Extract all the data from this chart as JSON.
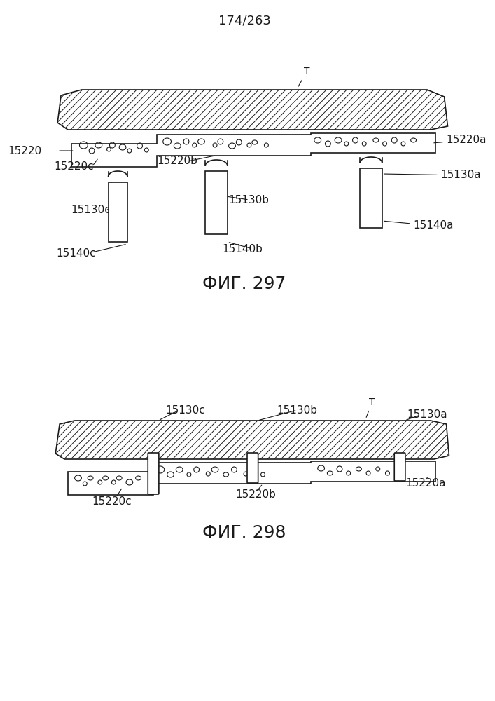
{
  "page_number": "174/263",
  "fig1_label": "ФИГ. 297",
  "fig2_label": "ФИГ. 298",
  "bg_color": "#ffffff",
  "line_color": "#1a1a1a",
  "hatch_color": "#1a1a1a",
  "label_fontsize": 11,
  "fig_label_fontsize": 18,
  "page_num_fontsize": 13
}
